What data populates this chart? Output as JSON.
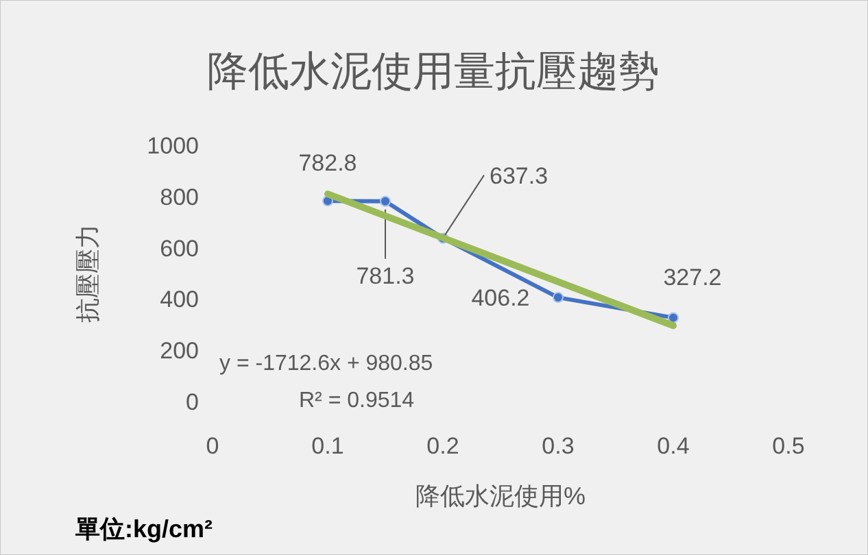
{
  "chart_data": {
    "type": "scatter",
    "title": "降低水泥使用量抗壓趨勢",
    "xlabel": "降低水泥使用%",
    "ylabel": "抗壓壓力",
    "xlim": [
      0,
      0.5
    ],
    "xticks": [
      0,
      0.1,
      0.2,
      0.3,
      0.4,
      0.5
    ],
    "ylim": [
      0,
      1000
    ],
    "yticks": [
      0,
      200,
      400,
      600,
      800,
      1000
    ],
    "grid": false,
    "marker": "circle",
    "line_style": "solid",
    "series": [
      {
        "type": "line",
        "color": "#4472c4",
        "x": [
          0.1,
          0.15,
          0.2,
          0.3,
          0.4
        ],
        "values": [
          782.8,
          781.3,
          637.3,
          406.2,
          327.2
        ],
        "value_labels": [
          "782.8",
          "781.3",
          "637.3",
          "406.2",
          "327.2"
        ]
      },
      {
        "type": "line",
        "color": "#9bbb59",
        "marker": "none",
        "x": [
          0.1,
          0.4
        ],
        "values": [
          810,
          296
        ]
      }
    ],
    "annotations": [
      "y = -1712.6x + 980.85",
      "R² = 0.9514",
      "單位:kg/cm²"
    ]
  }
}
